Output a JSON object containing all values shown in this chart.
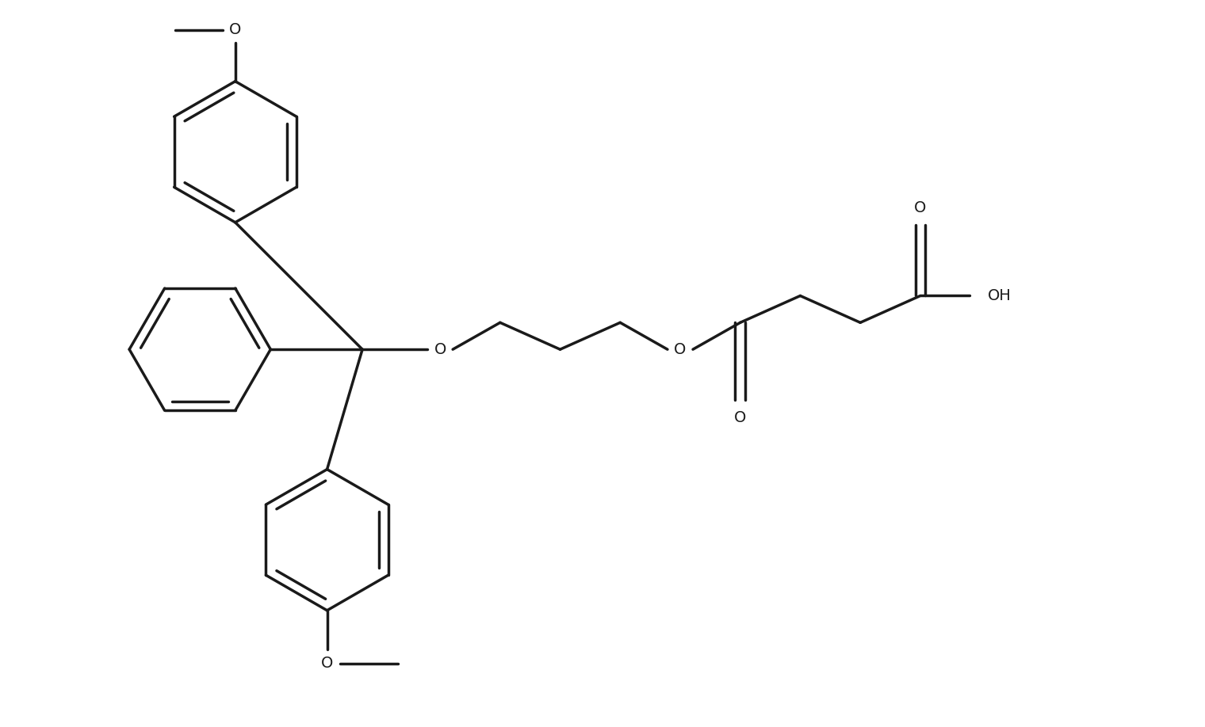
{
  "background_color": "#ffffff",
  "line_color": "#1a1a1a",
  "line_width": 2.5,
  "font_size": 14,
  "fig_width": 15.2,
  "fig_height": 9.18,
  "xlim": [
    0,
    17
  ],
  "ylim": [
    0,
    10
  ]
}
